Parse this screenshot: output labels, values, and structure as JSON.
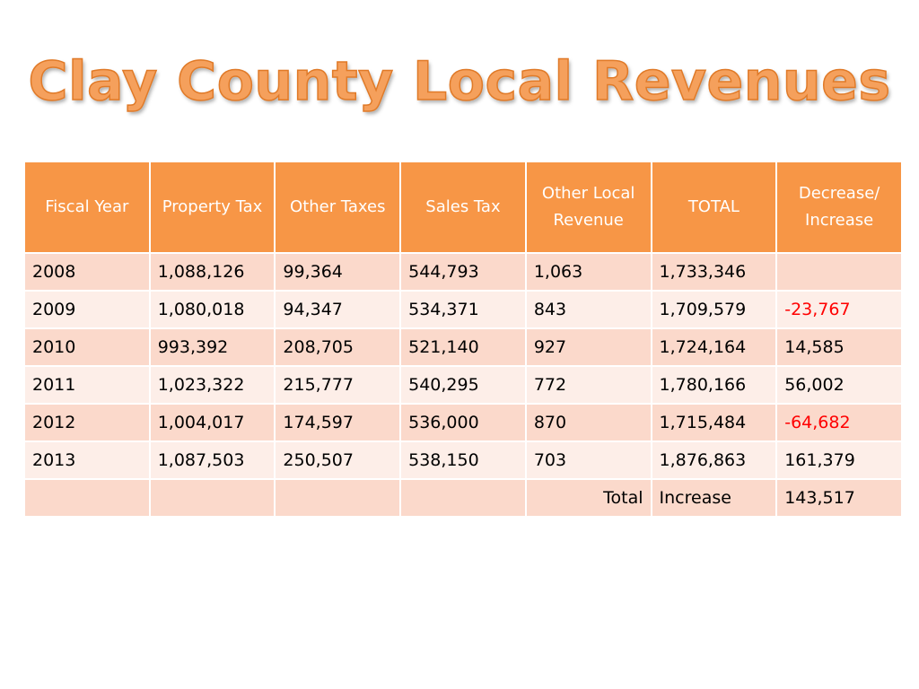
{
  "title": "Clay County Local Revenues",
  "table": {
    "headers": [
      "Fiscal Year",
      "Property Tax",
      "Other Taxes",
      "Sales Tax",
      "Other Local Revenue",
      "TOTAL",
      "Decrease/ Increase"
    ],
    "rows": [
      [
        "2008",
        "1,088,126",
        "99,364",
        "544,793",
        "1,063",
        "1,733,346",
        ""
      ],
      [
        "2009",
        "1,080,018",
        "94,347",
        "534,371",
        "843",
        "1,709,579",
        "-23,767"
      ],
      [
        "2010",
        "993,392",
        "208,705",
        "521,140",
        "927",
        "1,724,164",
        "14,585"
      ],
      [
        "2011",
        "1,023,322",
        "215,777",
        "540,295",
        "772",
        "1,780,166",
        "56,002"
      ],
      [
        "2012",
        "1,004,017",
        "174,597",
        "536,000",
        "870",
        "1,715,484",
        "-64,682"
      ],
      [
        "2013",
        "1,087,503",
        "250,507",
        "538,150",
        "703",
        "1,876,863",
        "161,379"
      ]
    ],
    "summary": [
      "",
      "",
      "",
      "",
      "Total",
      "Increase",
      "143,517"
    ]
  },
  "colors": {
    "header_bg": "#f79646",
    "row_odd_bg": "#fbd9cb",
    "row_even_bg": "#fdeee8",
    "negative_text": "#ff0000",
    "title_fill": "#f5a05c"
  }
}
